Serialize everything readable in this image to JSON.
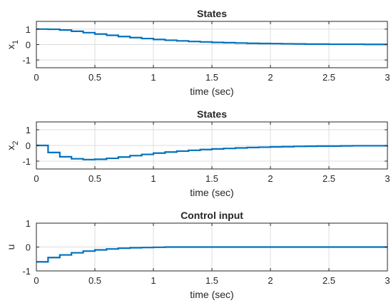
{
  "chart_data": [
    {
      "type": "line",
      "title": "States",
      "xlabel": "time (sec)",
      "ylabel": "x",
      "ylabel_sub": "1",
      "xlim": [
        0,
        3
      ],
      "ylim": [
        -1.5,
        1.5
      ],
      "xticks": [
        "0",
        "0.5",
        "1",
        "1.5",
        "2",
        "2.5",
        "3"
      ],
      "yticks": [
        "1",
        "0",
        "-1"
      ],
      "ytick_values": [
        1,
        0,
        -1
      ],
      "grid": true,
      "step": true,
      "series": [
        {
          "color": "#0072BD",
          "x": [
            0,
            0.1,
            0.2,
            0.3,
            0.4,
            0.5,
            0.6,
            0.7,
            0.8,
            0.9,
            1.0,
            1.1,
            1.2,
            1.3,
            1.4,
            1.5,
            1.6,
            1.7,
            1.8,
            1.9,
            2.0,
            2.1,
            2.2,
            2.3,
            2.4,
            2.5,
            2.6,
            2.7,
            2.8,
            2.9,
            3.0
          ],
          "y": [
            1.0,
            0.99,
            0.94,
            0.86,
            0.77,
            0.68,
            0.6,
            0.52,
            0.45,
            0.39,
            0.33,
            0.28,
            0.24,
            0.2,
            0.17,
            0.14,
            0.12,
            0.1,
            0.08,
            0.07,
            0.06,
            0.05,
            0.04,
            0.03,
            0.03,
            0.02,
            0.02,
            0.02,
            0.01,
            0.01,
            0.01
          ]
        }
      ]
    },
    {
      "type": "line",
      "title": "States",
      "xlabel": "time (sec)",
      "ylabel": "x",
      "ylabel_sub": "2",
      "xlim": [
        0,
        3
      ],
      "ylim": [
        -1.5,
        1.5
      ],
      "xticks": [
        "0",
        "0.5",
        "1",
        "1.5",
        "2",
        "2.5",
        "3"
      ],
      "yticks": [
        "1",
        "0",
        "-1"
      ],
      "ytick_values": [
        1,
        0,
        -1
      ],
      "grid": true,
      "step": true,
      "series": [
        {
          "color": "#0072BD",
          "x": [
            0,
            0.1,
            0.2,
            0.3,
            0.4,
            0.5,
            0.6,
            0.7,
            0.8,
            0.9,
            1.0,
            1.1,
            1.2,
            1.3,
            1.4,
            1.5,
            1.6,
            1.7,
            1.8,
            1.9,
            2.0,
            2.1,
            2.2,
            2.3,
            2.4,
            2.5,
            2.6,
            2.7,
            2.8,
            2.9,
            3.0
          ],
          "y": [
            0.0,
            -0.45,
            -0.72,
            -0.85,
            -0.9,
            -0.88,
            -0.82,
            -0.74,
            -0.65,
            -0.57,
            -0.49,
            -0.42,
            -0.36,
            -0.31,
            -0.26,
            -0.22,
            -0.19,
            -0.16,
            -0.13,
            -0.11,
            -0.09,
            -0.08,
            -0.06,
            -0.05,
            -0.04,
            -0.04,
            -0.03,
            -0.02,
            -0.02,
            -0.02,
            -0.01
          ]
        }
      ]
    },
    {
      "type": "line",
      "title": "Control input",
      "xlabel": "time (sec)",
      "ylabel": "u",
      "ylabel_sub": "",
      "xlim": [
        0,
        3
      ],
      "ylim": [
        -1,
        1
      ],
      "xticks": [
        "0",
        "0.5",
        "1",
        "1.5",
        "2",
        "2.5",
        "3"
      ],
      "yticks": [
        "1",
        "0",
        "-1"
      ],
      "ytick_values": [
        1,
        0,
        -1
      ],
      "grid": true,
      "step": true,
      "series": [
        {
          "color": "#0072BD",
          "x": [
            0,
            0.1,
            0.2,
            0.3,
            0.4,
            0.5,
            0.6,
            0.7,
            0.8,
            0.9,
            1.0,
            1.1,
            1.2,
            1.3,
            1.4,
            1.5,
            1.6,
            1.7,
            1.8,
            1.9,
            2.0,
            2.1,
            2.2,
            2.3,
            2.4,
            2.5,
            2.6,
            2.7,
            2.8,
            2.9,
            3.0
          ],
          "y": [
            -0.62,
            -0.44,
            -0.33,
            -0.24,
            -0.17,
            -0.12,
            -0.08,
            -0.05,
            -0.03,
            -0.02,
            -0.01,
            0.0,
            0.0,
            0.0,
            0.0,
            0.0,
            0.0,
            0.0,
            0.0,
            0.0,
            0.0,
            0.0,
            0.0,
            0.0,
            0.0,
            0.0,
            0.0,
            0.0,
            0.0,
            0.0,
            0.0
          ]
        }
      ]
    }
  ]
}
